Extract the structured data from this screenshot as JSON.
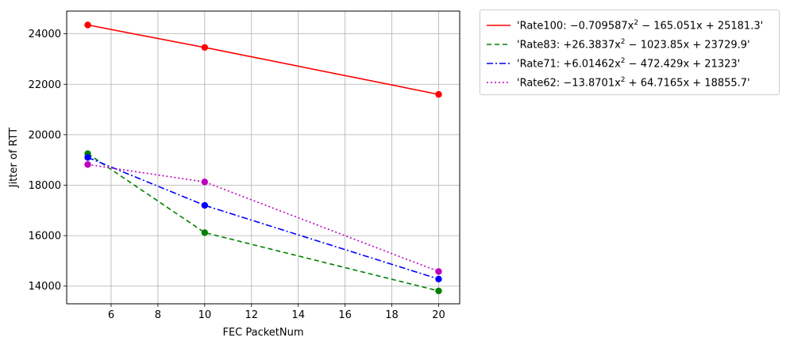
{
  "chart_data": {
    "type": "line",
    "xlabel": "FEC PacketNum",
    "ylabel": "Jitter of RTT",
    "xlim": [
      4.1,
      20.9
    ],
    "ylim": [
      13300,
      24900
    ],
    "xticks": [
      6,
      8,
      10,
      12,
      14,
      16,
      18,
      20
    ],
    "yticks": [
      14000,
      16000,
      18000,
      20000,
      22000,
      24000
    ],
    "grid": true,
    "legend_position": "outside-top-right",
    "x": [
      5,
      10,
      20
    ],
    "series": [
      {
        "name": "'Rate100: −0.709587x² − 165.051x + 25181.3'",
        "label_pre": "'Rate100: −0.709587",
        "label_post": " − 165.051x + 25181.3'",
        "values": [
          24350,
          23460,
          21600
        ],
        "color": "#ff0000",
        "marker_color": "#ff0000",
        "dash": ""
      },
      {
        "name": "'Rate83: +26.3837x² − 1023.85x + 23729.9'",
        "label_pre": "'Rate83: +26.3837",
        "label_post": " − 1023.85x + 23729.9'",
        "values": [
          19250,
          16120,
          13810
        ],
        "color": "#008000",
        "marker_color": "#008000",
        "dash": "6,4"
      },
      {
        "name": "'Rate71: +6.01462x² − 472.429x + 21323'",
        "label_pre": "'Rate71: +6.01462",
        "label_post": " − 472.429x + 21323'",
        "values": [
          19100,
          17200,
          14280
        ],
        "color": "#0000ff",
        "marker_color": "#0000ff",
        "dash": "8,3,2,3"
      },
      {
        "name": "'Rate62: −13.8701x² + 64.7165x + 18855.7'",
        "label_pre": "'Rate62: −13.8701",
        "label_post": " + 64.7165x + 18855.7'",
        "values": [
          18820,
          18130,
          14580
        ],
        "color": "#bf00bf",
        "marker_color": "#bf00bf",
        "dash": "2,3"
      }
    ]
  }
}
